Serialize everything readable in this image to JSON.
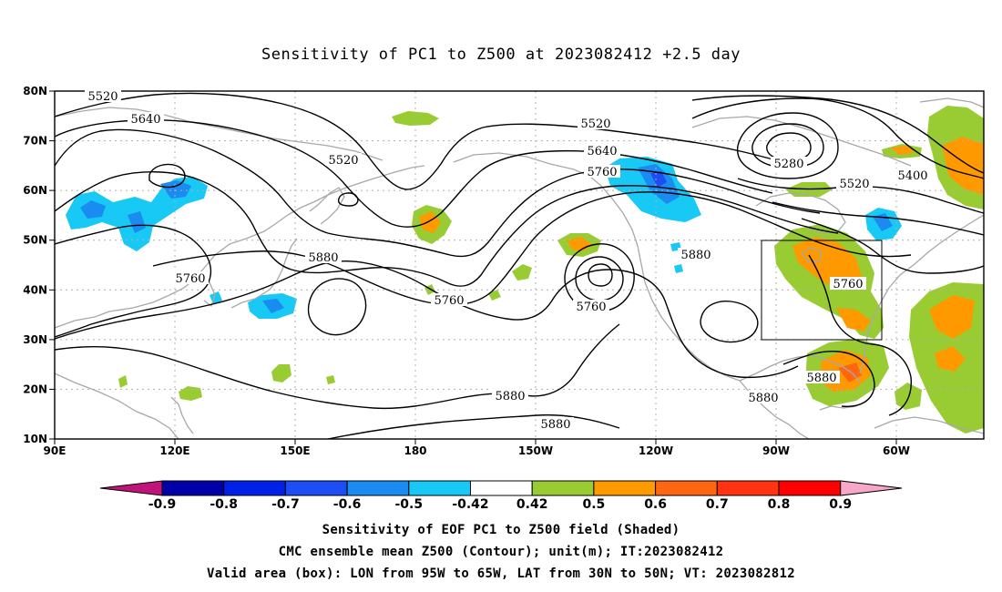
{
  "title": "Sensitivity of PC1 to Z500 at 2023082412 +2.5 day",
  "map": {
    "lat_labels": [
      "80N",
      "70N",
      "60N",
      "50N",
      "40N",
      "30N",
      "20N",
      "10N"
    ],
    "lon_labels": [
      "90E",
      "120E",
      "150E",
      "180",
      "150W",
      "120W",
      "90W",
      "60W"
    ],
    "valid_box": {
      "lon_from": "95W",
      "lon_to": "65W",
      "lat_from": "30N",
      "lat_to": "50N"
    }
  },
  "contour_labels": [
    {
      "text": "5520"
    },
    {
      "text": "5640"
    },
    {
      "text": "5520"
    },
    {
      "text": "5520"
    },
    {
      "text": "5640"
    },
    {
      "text": "5760"
    },
    {
      "text": "5280"
    },
    {
      "text": "5520"
    },
    {
      "text": "5400"
    },
    {
      "text": "5760"
    },
    {
      "text": "5880"
    },
    {
      "text": "5760"
    },
    {
      "text": "5760"
    },
    {
      "text": "5880"
    },
    {
      "text": "5760"
    },
    {
      "text": "5880"
    },
    {
      "text": "5880"
    },
    {
      "text": "5880"
    },
    {
      "text": "5880"
    }
  ],
  "colorbar": {
    "labels": [
      "-0.9",
      "-0.8",
      "-0.7",
      "-0.6",
      "-0.5",
      "-0.42",
      "0.42",
      "0.5",
      "0.6",
      "0.7",
      "0.8",
      "0.9"
    ],
    "colors": {
      "below": "#c0147a",
      "bins": [
        "#0000a8",
        "#0022e6",
        "#1c4df5",
        "#1a8bf0",
        "#18c8f5",
        "#ffffff",
        "#99cc33",
        "#ff9900",
        "#ff6611",
        "#ff3311",
        "#ff0000"
      ],
      "above": "#f7a8c8"
    }
  },
  "captions": [
    "Sensitivity of EOF PC1 to Z500 field (Shaded)",
    "CMC ensemble mean Z500 (Contour); unit(m); IT:2023082412",
    "Valid area (box): LON from 95W to 65W, LAT from 30N to 50N; VT: 2023082812"
  ],
  "colors": {
    "positive_green": "#99cc33",
    "positive_orange": "#ff9900",
    "positive_red_orange": "#ff6611",
    "negative_cyan": "#18c8f5",
    "negative_blue": "#1a8bf0",
    "coastline": "#a8a8a8",
    "contour": "#000000"
  }
}
